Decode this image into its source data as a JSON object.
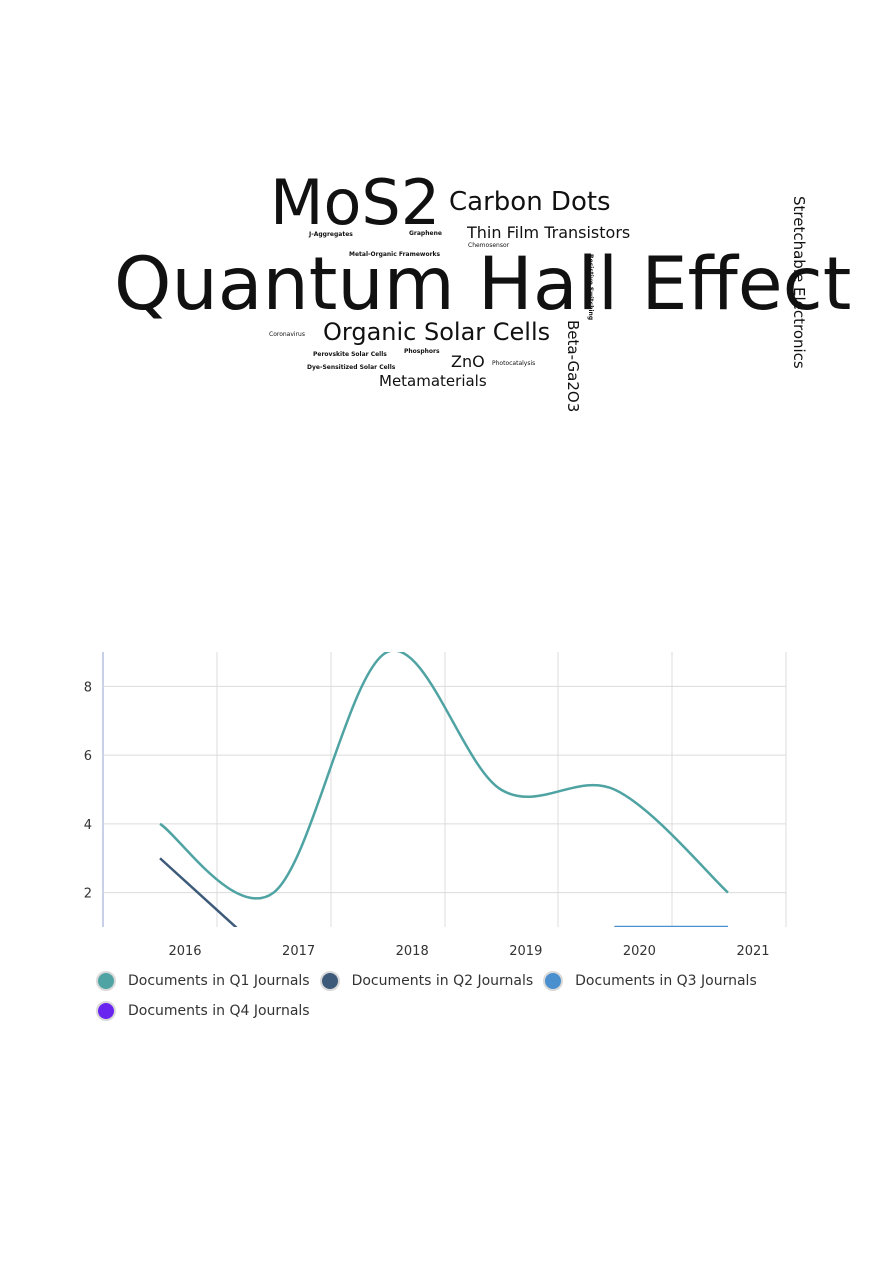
{
  "wordcloud": {
    "words": [
      {
        "text": "Quantum Hall Effect",
        "weight": 100
      },
      {
        "text": "MoS2",
        "weight": 100
      },
      {
        "text": "Carbon Dots",
        "weight": 45
      },
      {
        "text": "Organic Solar Cells",
        "weight": 40
      },
      {
        "text": "Thin Film Transistors",
        "weight": 35
      },
      {
        "text": "Stretchable Electronics",
        "weight": 35
      },
      {
        "text": "Beta-Ga2O3",
        "weight": 30
      },
      {
        "text": "ZnO",
        "weight": 25
      },
      {
        "text": "Metamaterials",
        "weight": 25
      },
      {
        "text": "J-Aggregates",
        "weight": 5
      },
      {
        "text": "Graphene",
        "weight": 5
      },
      {
        "text": "Chemosensor",
        "weight": 5
      },
      {
        "text": "Metal-Organic Frameworks",
        "weight": 5
      },
      {
        "text": "Resistive Switching",
        "weight": 5
      },
      {
        "text": "Coronavirus",
        "weight": 5
      },
      {
        "text": "Perovskite Solar Cells",
        "weight": 5
      },
      {
        "text": "Phosphors",
        "weight": 5
      },
      {
        "text": "Dye-Sensitized Solar Cells",
        "weight": 5
      },
      {
        "text": "Photocatalysis",
        "weight": 5
      }
    ]
  },
  "chart_data": {
    "type": "line",
    "x": [
      "2016",
      "2017",
      "2018",
      "2019",
      "2020",
      "2021"
    ],
    "ylim": [
      1,
      9
    ],
    "yticks": [
      2,
      4,
      6,
      8
    ],
    "grid": true,
    "legend_position": "bottom",
    "series": [
      {
        "name": "Documents in Q1 Journals",
        "color": "#4fa3a3",
        "values": [
          4,
          2,
          9,
          5,
          5,
          2
        ]
      },
      {
        "name": "Documents in Q2 Journals",
        "color": "#3e5a7a",
        "values": [
          3,
          0,
          null,
          null,
          null,
          null
        ]
      },
      {
        "name": "Documents in Q3 Journals",
        "color": "#4a8fce",
        "values": [
          null,
          1,
          null,
          null,
          1,
          1
        ]
      },
      {
        "name": "Documents in Q4 Journals",
        "color": "#6a24f0",
        "values": [
          null,
          null,
          null,
          null,
          null,
          null
        ]
      }
    ]
  }
}
